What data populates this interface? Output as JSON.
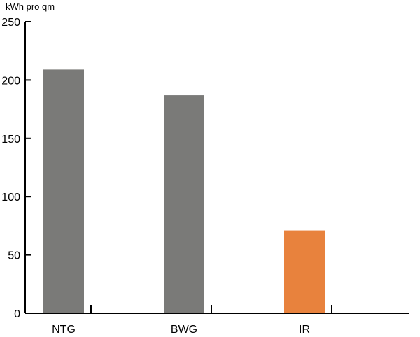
{
  "chart_data": {
    "type": "bar",
    "title": "",
    "xlabel": "",
    "ylabel": "kWh pro qm",
    "categories": [
      "NTG",
      "BWG",
      "IR"
    ],
    "values": [
      209,
      187,
      71
    ],
    "bar_colors": [
      "#7a7a78",
      "#7a7a78",
      "#e8823d"
    ],
    "ylim": [
      0,
      250
    ],
    "yticks": [
      0,
      50,
      100,
      150,
      200,
      250
    ],
    "grid": false,
    "legend": "none"
  }
}
